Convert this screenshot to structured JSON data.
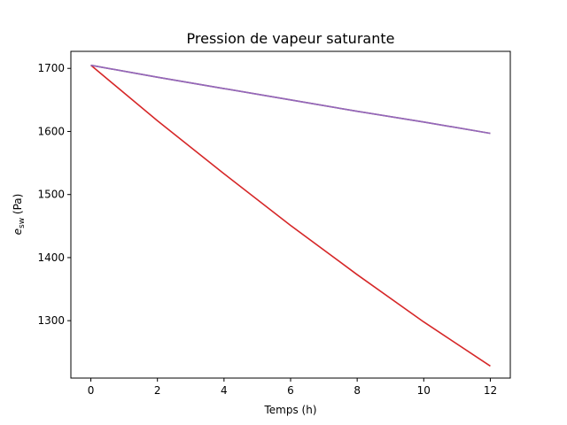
{
  "chart_data": {
    "type": "line",
    "title": "Pression de vapeur saturante",
    "xlabel": "Temps (h)",
    "ylabel_main": "e",
    "ylabel_sub": "sw",
    "ylabel_unit": " (Pa)",
    "xlim": [
      -0.6,
      12.6
    ],
    "ylim": [
      1209,
      1727
    ],
    "xticks": [
      0,
      2,
      4,
      6,
      8,
      10,
      12
    ],
    "yticks": [
      1300,
      1400,
      1500,
      1600,
      1700
    ],
    "grid": false,
    "legend": "none",
    "series": [
      {
        "color": "#d62728",
        "x": [
          0,
          2,
          4,
          6,
          8,
          10,
          12
        ],
        "y": [
          1705,
          1617,
          1533,
          1451,
          1373,
          1298,
          1228
        ]
      },
      {
        "color": "#8c564b",
        "x": [
          0,
          2,
          4,
          6,
          8,
          10,
          12
        ],
        "y": [
          1705,
          1686,
          1668,
          1650,
          1632,
          1615,
          1597
        ]
      },
      {
        "color": "#9467bd",
        "x": [
          0,
          2,
          4,
          6,
          8,
          10,
          12
        ],
        "y": [
          1705,
          1686,
          1668,
          1650,
          1632,
          1615,
          1597
        ]
      }
    ]
  }
}
